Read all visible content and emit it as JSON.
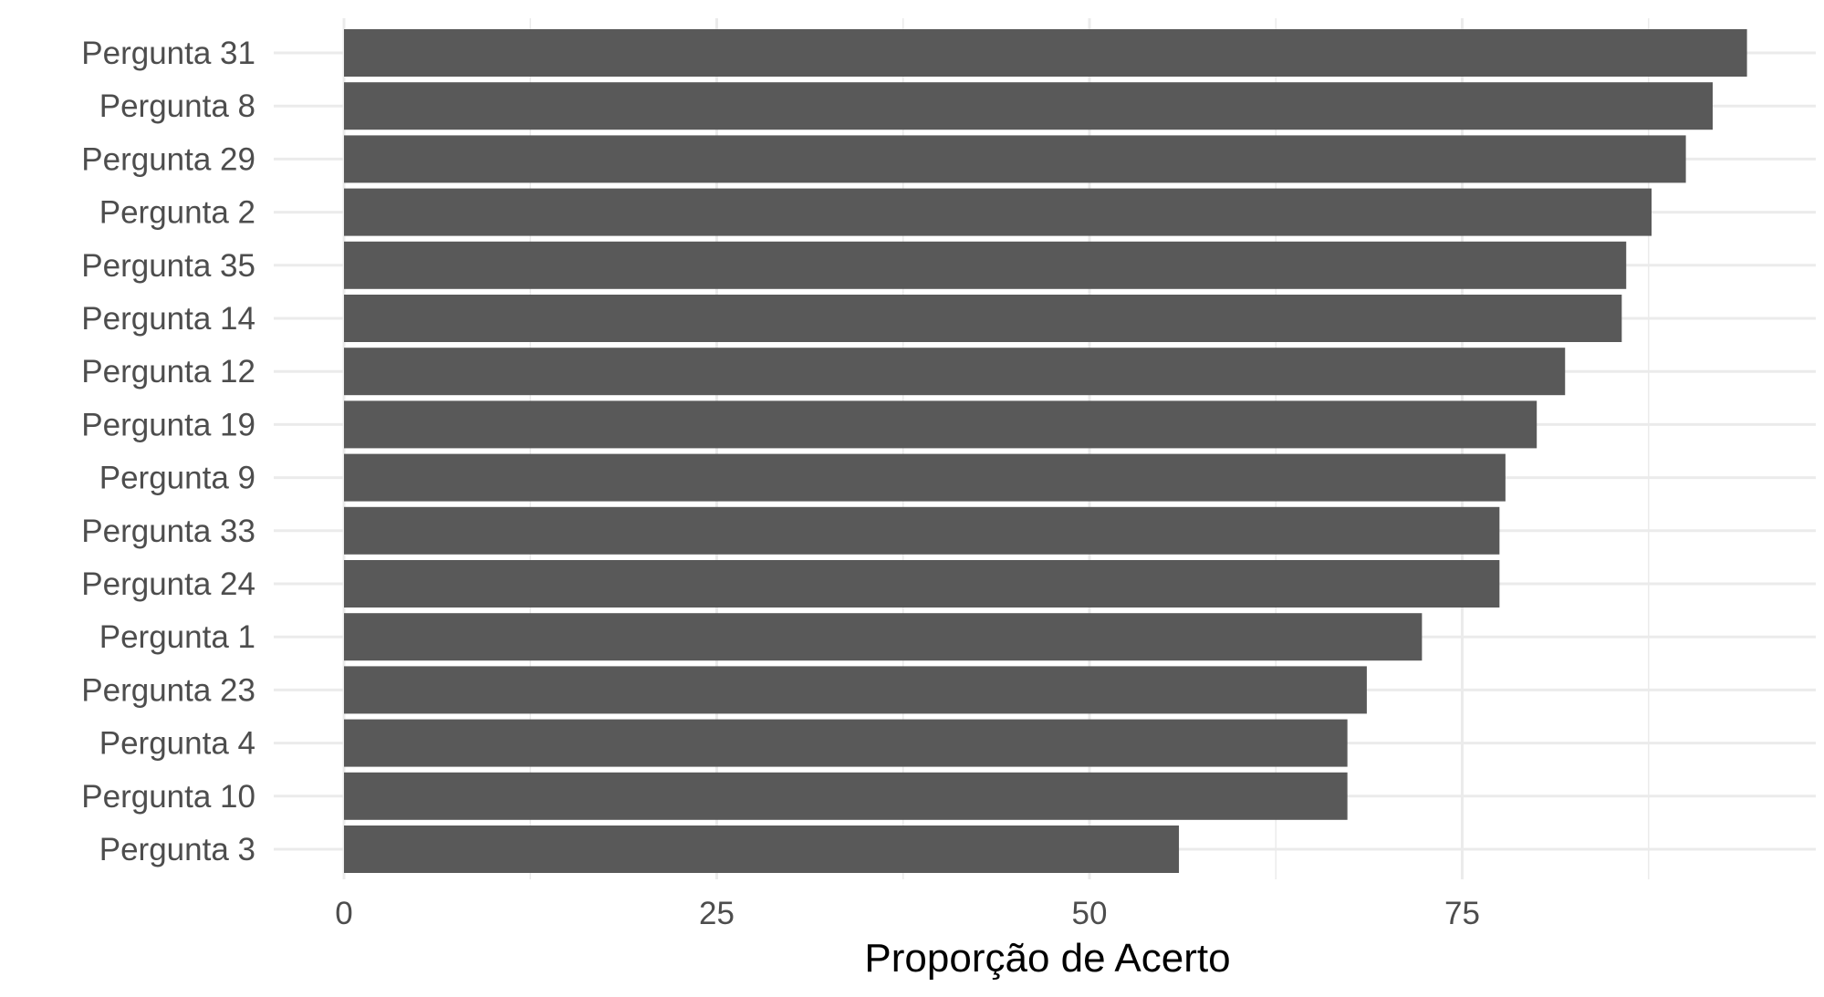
{
  "chart_data": {
    "type": "bar",
    "orientation": "horizontal",
    "categories": [
      "Pergunta 31",
      "Pergunta 8",
      "Pergunta 29",
      "Pergunta 2",
      "Pergunta 35",
      "Pergunta 14",
      "Pergunta 12",
      "Pergunta 19",
      "Pergunta 9",
      "Pergunta 33",
      "Pergunta 24",
      "Pergunta 1",
      "Pergunta 23",
      "Pergunta 4",
      "Pergunta 10",
      "Pergunta 3"
    ],
    "values": [
      94.1,
      91.8,
      90.0,
      87.7,
      86.0,
      85.7,
      81.9,
      80.0,
      77.9,
      77.5,
      77.5,
      72.3,
      68.6,
      67.3,
      67.3,
      56.0
    ],
    "title": "",
    "xlabel": "Proporção de Acerto",
    "ylabel": "",
    "xlim": [
      0,
      98.8
    ],
    "x_ticks": [
      0,
      25,
      50,
      75
    ],
    "grid": true,
    "legend": "none",
    "colors": {
      "bar": "#595959",
      "grid": "#ebebeb",
      "tick_text": "#4d4d4d",
      "axis_title": "#000000",
      "background": "#ffffff"
    }
  }
}
